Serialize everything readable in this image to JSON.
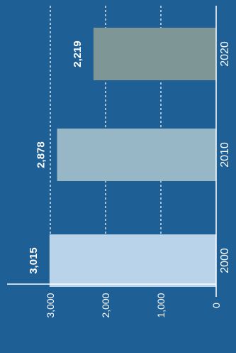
{
  "chart_data": {
    "type": "bar",
    "orientation": "horizontal",
    "categories": [
      "2000",
      "2010",
      "2020"
    ],
    "values": [
      3015,
      2878,
      2219
    ],
    "value_labels": [
      "3,015",
      "2,878",
      "2,219"
    ],
    "value_axis": {
      "ticks": [
        0,
        1000,
        2000,
        3000
      ],
      "tick_labels": [
        "0",
        "1,000",
        "2,000",
        "3,000"
      ],
      "range": [
        0,
        3000
      ]
    },
    "grid": true,
    "bar_colors": [
      "#b9d3ea",
      "#97b6c6",
      "#7e9796"
    ],
    "background_color": "#1e5f96"
  }
}
